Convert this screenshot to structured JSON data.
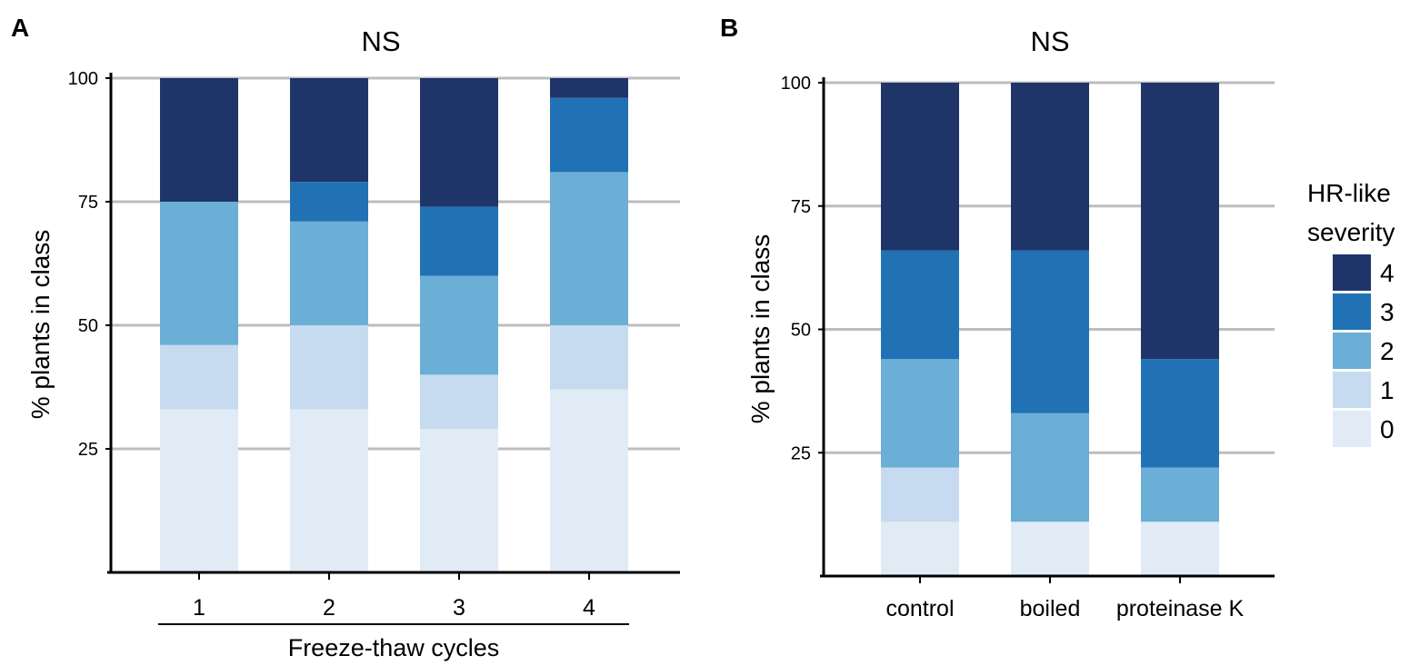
{
  "colors": {
    "0": "#e1ebf6",
    "1": "#c6dbef",
    "2": "#6baed6",
    "3": "#2171b5",
    "4": "#1f3569",
    "grid": "#bdbdbd",
    "axis": "#000000"
  },
  "legend": {
    "title_line1": "HR-like",
    "title_line2": "severity",
    "classes": [
      "4",
      "3",
      "2",
      "1",
      "0"
    ]
  },
  "chart_data": [
    {
      "panel": "A",
      "type": "bar",
      "stacked": true,
      "title": "NS",
      "xlabel": "Freeze-thaw cycles",
      "ylabel": "% plants in class",
      "ylim": [
        0,
        100
      ],
      "yticks": [
        25,
        50,
        75,
        100
      ],
      "grid": true,
      "categories": [
        "1",
        "2",
        "3",
        "4"
      ],
      "series": [
        {
          "name": "0",
          "values": [
            33,
            33,
            29,
            37
          ]
        },
        {
          "name": "1",
          "values": [
            13,
            17,
            11,
            13
          ]
        },
        {
          "name": "2",
          "values": [
            29,
            21,
            20,
            31
          ]
        },
        {
          "name": "3",
          "values": [
            0,
            8,
            14,
            15
          ]
        },
        {
          "name": "4",
          "values": [
            25,
            21,
            26,
            4
          ]
        }
      ]
    },
    {
      "panel": "B",
      "type": "bar",
      "stacked": true,
      "title": "NS",
      "xlabel": "",
      "ylabel": "% plants in class",
      "ylim": [
        0,
        100
      ],
      "yticks": [
        25,
        50,
        75,
        100
      ],
      "grid": true,
      "categories": [
        "control",
        "boiled",
        "proteinase K"
      ],
      "series": [
        {
          "name": "0",
          "values": [
            11,
            11,
            11
          ]
        },
        {
          "name": "1",
          "values": [
            11,
            0,
            0
          ]
        },
        {
          "name": "2",
          "values": [
            22,
            22,
            11
          ]
        },
        {
          "name": "3",
          "values": [
            22,
            33,
            22
          ]
        },
        {
          "name": "4",
          "values": [
            34,
            34,
            56
          ]
        }
      ]
    }
  ]
}
